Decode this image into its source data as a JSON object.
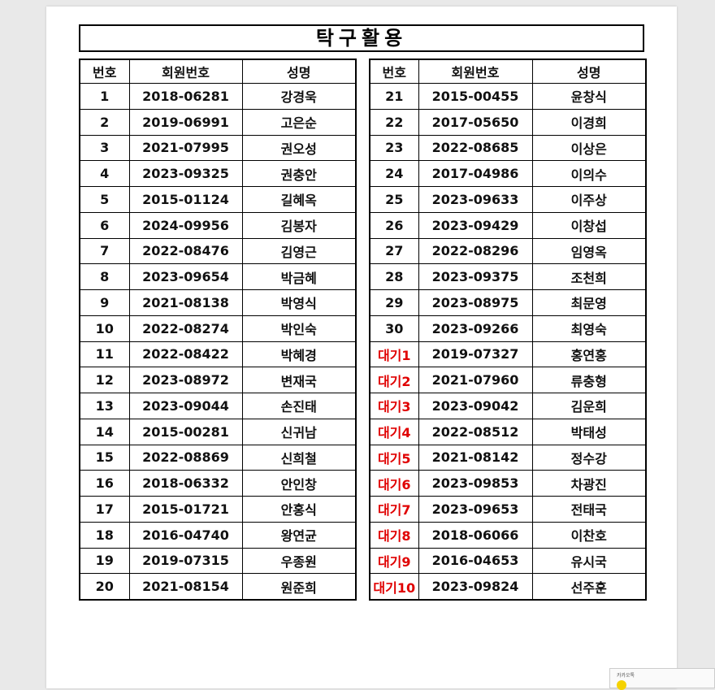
{
  "title": "탁구활용",
  "highlight_color": "#e00000",
  "left_table": {
    "header": [
      "번호",
      "회원번호",
      "성명"
    ],
    "rows": [
      [
        "1",
        "2018-06281",
        "강경욱"
      ],
      [
        "2",
        "2019-06991",
        "고은순"
      ],
      [
        "3",
        "2021-07995",
        "권오성"
      ],
      [
        "4",
        "2023-09325",
        "권충안"
      ],
      [
        "5",
        "2015-01124",
        "길혜옥"
      ],
      [
        "6",
        "2024-09956",
        "김봉자"
      ],
      [
        "7",
        "2022-08476",
        "김영근"
      ],
      [
        "8",
        "2023-09654",
        "박금혜"
      ],
      [
        "9",
        "2021-08138",
        "박영식"
      ],
      [
        "10",
        "2022-08274",
        "박인숙"
      ],
      [
        "11",
        "2022-08422",
        "박혜경"
      ],
      [
        "12",
        "2023-08972",
        "변재국"
      ],
      [
        "13",
        "2023-09044",
        "손진태"
      ],
      [
        "14",
        "2015-00281",
        "신귀남"
      ],
      [
        "15",
        "2022-08869",
        "신희철"
      ],
      [
        "16",
        "2018-06332",
        "안인창"
      ],
      [
        "17",
        "2015-01721",
        "안홍식"
      ],
      [
        "18",
        "2016-04740",
        "왕연균"
      ],
      [
        "19",
        "2019-07315",
        "우종원"
      ],
      [
        "20",
        "2021-08154",
        "원준희"
      ]
    ]
  },
  "right_table": {
    "header": [
      "번호",
      "회원번호",
      "성명"
    ],
    "rows": [
      [
        "21",
        "2015-00455",
        "윤창식"
      ],
      [
        "22",
        "2017-05650",
        "이경희"
      ],
      [
        "23",
        "2022-08685",
        "이상은"
      ],
      [
        "24",
        "2017-04986",
        "이의수"
      ],
      [
        "25",
        "2023-09633",
        "이주상"
      ],
      [
        "26",
        "2023-09429",
        "이창섭"
      ],
      [
        "27",
        "2022-08296",
        "임영옥"
      ],
      [
        "28",
        "2023-09375",
        "조천희"
      ],
      [
        "29",
        "2023-08975",
        "최문영"
      ],
      [
        "30",
        "2023-09266",
        "최영숙"
      ],
      [
        "대기1",
        "2019-07327",
        "홍연홍"
      ],
      [
        "대기2",
        "2021-07960",
        "류충형"
      ],
      [
        "대기3",
        "2023-09042",
        "김운희"
      ],
      [
        "대기4",
        "2022-08512",
        "박태성"
      ],
      [
        "대기5",
        "2021-08142",
        "정수강"
      ],
      [
        "대기6",
        "2023-09853",
        "차광진"
      ],
      [
        "대기7",
        "2023-09653",
        "전태국"
      ],
      [
        "대기8",
        "2018-06066",
        "이찬호"
      ],
      [
        "대기9",
        "2016-04653",
        "유시국"
      ],
      [
        "대기10",
        "2023-09824",
        "선주훈"
      ]
    ]
  },
  "popup": {
    "label": "카카오톡"
  }
}
